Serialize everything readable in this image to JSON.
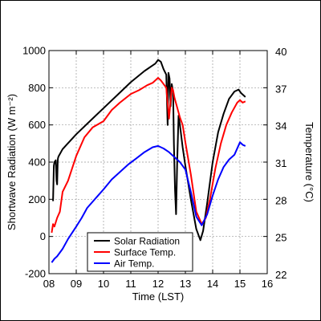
{
  "chart_data": {
    "type": "line",
    "xlabel": "Time (LST)",
    "ylabel_left": "Shortwave Radiation (W m⁻²)",
    "ylabel_right": "Temperature (°C)",
    "xlim": [
      8,
      16
    ],
    "ylim_left": [
      -200,
      1000
    ],
    "ylim_right": [
      22,
      40
    ],
    "x_ticks": [
      "08",
      "09",
      "10",
      "11",
      "12",
      "13",
      "14",
      "15",
      "16"
    ],
    "y_left_ticks": [
      "-200",
      "0",
      "200",
      "400",
      "600",
      "800",
      "1000"
    ],
    "y_right_ticks": [
      "22",
      "25",
      "28",
      "31",
      "34",
      "37",
      "40"
    ],
    "grid": true,
    "legend_position": "bottom-left",
    "series": [
      {
        "name": "Solar Radiation",
        "axis": "left",
        "color": "#000000",
        "x": [
          8.15,
          8.18,
          8.2,
          8.25,
          8.28,
          8.3,
          8.32,
          8.33,
          8.35,
          8.5,
          9.0,
          9.5,
          10.0,
          10.5,
          11.0,
          11.5,
          11.9,
          12.0,
          12.1,
          12.2,
          12.3,
          12.35,
          12.38,
          12.42,
          12.46,
          12.5,
          12.55,
          12.58,
          12.62,
          12.66,
          12.7,
          12.75,
          12.8,
          12.9,
          13.0,
          13.2,
          13.4,
          13.55,
          13.65,
          13.8,
          14.0,
          14.2,
          14.4,
          14.6,
          14.8,
          14.95,
          15.05,
          15.2
        ],
        "values": [
          190,
          380,
          400,
          410,
          300,
          280,
          400,
          420,
          430,
          470,
          550,
          620,
          690,
          760,
          830,
          890,
          930,
          950,
          940,
          900,
          870,
          600,
          880,
          850,
          700,
          820,
          780,
          500,
          250,
          120,
          400,
          650,
          600,
          480,
          380,
          200,
          40,
          -20,
          30,
          180,
          400,
          560,
          660,
          740,
          780,
          790,
          770,
          750
        ]
      },
      {
        "name": "Surface Temp.",
        "axis": "right",
        "color": "#ff0000",
        "x": [
          8.1,
          8.15,
          8.2,
          8.3,
          8.4,
          8.5,
          8.7,
          9.0,
          9.3,
          9.6,
          10.0,
          10.3,
          10.6,
          11.0,
          11.3,
          11.6,
          11.8,
          12.0,
          12.1,
          12.2,
          12.3,
          12.4,
          12.5,
          12.55,
          12.6,
          12.7,
          12.8,
          12.9,
          13.0,
          13.2,
          13.4,
          13.6,
          13.75,
          13.9,
          14.1,
          14.3,
          14.5,
          14.7,
          14.9,
          15.0,
          15.1,
          15.2
        ],
        "values": [
          25.3,
          26.0,
          25.8,
          26.5,
          27.0,
          28.6,
          29.5,
          31.5,
          33.0,
          33.8,
          34.3,
          35.2,
          35.8,
          36.5,
          36.8,
          37.2,
          37.4,
          37.8,
          37.6,
          37.3,
          37.0,
          34.5,
          37.0,
          36.8,
          36.2,
          35.4,
          34.6,
          34.0,
          32.6,
          30.0,
          27.0,
          26.0,
          26.5,
          28.0,
          30.5,
          32.5,
          34.0,
          35.0,
          35.8,
          36.0,
          35.8,
          35.9
        ]
      },
      {
        "name": "Air Temp.",
        "axis": "right",
        "color": "#0000ff",
        "x": [
          8.1,
          8.2,
          8.3,
          8.5,
          8.7,
          9.0,
          9.2,
          9.4,
          9.6,
          9.8,
          10.0,
          10.3,
          10.6,
          10.9,
          11.2,
          11.5,
          11.8,
          12.0,
          12.2,
          12.4,
          12.6,
          12.8,
          13.0,
          13.2,
          13.4,
          13.6,
          13.8,
          14.0,
          14.2,
          14.4,
          14.6,
          14.8,
          15.0,
          15.1,
          15.2
        ],
        "values": [
          22.9,
          23.2,
          23.4,
          24.0,
          24.8,
          25.8,
          26.5,
          27.3,
          27.8,
          28.3,
          28.8,
          29.6,
          30.2,
          30.8,
          31.3,
          31.8,
          32.2,
          32.3,
          32.1,
          31.8,
          31.4,
          31.0,
          30.4,
          28.6,
          26.6,
          25.9,
          26.8,
          28.3,
          29.6,
          30.6,
          31.2,
          31.6,
          32.6,
          32.4,
          32.3
        ]
      }
    ]
  }
}
